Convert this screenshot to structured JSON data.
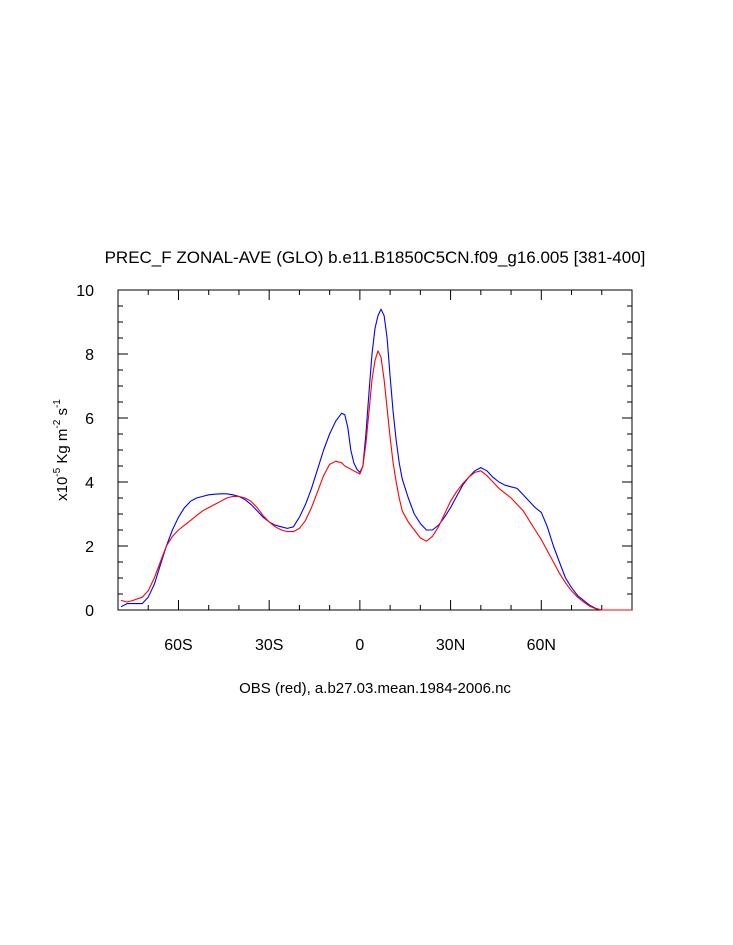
{
  "chart_data": {
    "type": "line",
    "title": "PREC_F ZONAL-AVE (GLO) b.e11.B1850C5CN.f09_g16.005 [381-400]",
    "xlabel": "OBS (red), a.b27.03.mean.1984-2006.nc",
    "ylabel": {
      "prefix": "x10",
      "exp": "-5",
      "unit1": " Kg m",
      "exp2": "-2",
      "unit2": " s",
      "exp3": "-1"
    },
    "xlim": [
      -80,
      90
    ],
    "ylim": [
      0,
      10
    ],
    "x_ticks": [
      {
        "value": -60,
        "label": "60S"
      },
      {
        "value": -30,
        "label": "30S"
      },
      {
        "value": 0,
        "label": "0"
      },
      {
        "value": 30,
        "label": "30N"
      },
      {
        "value": 60,
        "label": "60N"
      }
    ],
    "y_ticks": [
      {
        "value": 0,
        "label": "0"
      },
      {
        "value": 2,
        "label": "2"
      },
      {
        "value": 4,
        "label": "4"
      },
      {
        "value": 6,
        "label": "6"
      },
      {
        "value": 8,
        "label": "8"
      },
      {
        "value": 10,
        "label": "10"
      }
    ],
    "series": [
      {
        "color": "#0000ff",
        "x": [
          -79,
          -77,
          -75,
          -72,
          -70,
          -68,
          -66,
          -64,
          -62,
          -60,
          -58,
          -56,
          -54,
          -52,
          -50,
          -48,
          -46,
          -44,
          -42,
          -40,
          -38,
          -36,
          -34,
          -32,
          -30,
          -28,
          -26,
          -24,
          -22,
          -20,
          -18,
          -16,
          -14,
          -12,
          -10,
          -8,
          -6,
          -5,
          -4,
          -3,
          -2,
          -1,
          0,
          1,
          2,
          3,
          4,
          5,
          6,
          7,
          8,
          9,
          10,
          11,
          12,
          13,
          14,
          16,
          18,
          20,
          22,
          24,
          26,
          28,
          30,
          32,
          34,
          36,
          38,
          40,
          42,
          44,
          46,
          48,
          50,
          52,
          54,
          56,
          58,
          60,
          62,
          64,
          66,
          68,
          70,
          72,
          74,
          76,
          78,
          80,
          82,
          84,
          86,
          88,
          90
        ],
        "y": [
          0.1,
          0.2,
          0.2,
          0.2,
          0.4,
          0.8,
          1.4,
          2.0,
          2.5,
          2.9,
          3.2,
          3.4,
          3.5,
          3.55,
          3.6,
          3.62,
          3.63,
          3.63,
          3.6,
          3.55,
          3.45,
          3.3,
          3.1,
          2.9,
          2.75,
          2.65,
          2.6,
          2.55,
          2.6,
          2.9,
          3.3,
          3.8,
          4.4,
          5.0,
          5.5,
          5.9,
          6.15,
          6.1,
          5.7,
          5.0,
          4.6,
          4.4,
          4.3,
          4.5,
          5.5,
          6.8,
          8.0,
          8.8,
          9.2,
          9.4,
          9.2,
          8.5,
          7.3,
          6.2,
          5.3,
          4.6,
          4.1,
          3.5,
          3.0,
          2.7,
          2.5,
          2.5,
          2.65,
          2.9,
          3.2,
          3.55,
          3.9,
          4.15,
          4.35,
          4.45,
          4.35,
          4.15,
          4.0,
          3.9,
          3.85,
          3.8,
          3.6,
          3.4,
          3.2,
          3.05,
          2.6,
          2.0,
          1.5,
          1.0,
          0.7,
          0.45,
          0.3,
          0.15,
          0.05,
          0.0,
          0.0,
          0.0,
          0.0,
          0.0,
          0.0
        ]
      },
      {
        "name": "OBS",
        "color": "#ff0000",
        "x": [
          -79,
          -77,
          -75,
          -72,
          -70,
          -68,
          -66,
          -64,
          -62,
          -60,
          -58,
          -56,
          -54,
          -52,
          -50,
          -48,
          -46,
          -44,
          -42,
          -40,
          -38,
          -36,
          -34,
          -32,
          -30,
          -28,
          -26,
          -24,
          -22,
          -20,
          -18,
          -16,
          -14,
          -12,
          -10,
          -8,
          -6,
          -5,
          -4,
          -3,
          -2,
          -1,
          0,
          1,
          2,
          3,
          4,
          5,
          6,
          7,
          8,
          9,
          10,
          11,
          12,
          13,
          14,
          16,
          18,
          20,
          22,
          24,
          26,
          28,
          30,
          32,
          34,
          36,
          38,
          40,
          42,
          44,
          46,
          48,
          50,
          52,
          54,
          56,
          58,
          60,
          62,
          64,
          66,
          68,
          70,
          72,
          74,
          76,
          78,
          80,
          82,
          84,
          86,
          88,
          90
        ],
        "y": [
          0.3,
          0.25,
          0.3,
          0.4,
          0.6,
          1.0,
          1.5,
          2.0,
          2.3,
          2.5,
          2.65,
          2.8,
          2.95,
          3.1,
          3.2,
          3.3,
          3.4,
          3.5,
          3.55,
          3.55,
          3.5,
          3.4,
          3.2,
          2.95,
          2.75,
          2.6,
          2.5,
          2.45,
          2.45,
          2.55,
          2.8,
          3.2,
          3.7,
          4.2,
          4.55,
          4.65,
          4.6,
          4.5,
          4.45,
          4.4,
          4.35,
          4.3,
          4.25,
          4.5,
          5.2,
          6.2,
          7.2,
          7.8,
          8.1,
          7.9,
          7.2,
          6.3,
          5.4,
          4.6,
          4.0,
          3.5,
          3.1,
          2.75,
          2.5,
          2.25,
          2.15,
          2.3,
          2.6,
          3.0,
          3.4,
          3.7,
          3.95,
          4.15,
          4.3,
          4.35,
          4.2,
          4.0,
          3.8,
          3.65,
          3.5,
          3.3,
          3.1,
          2.8,
          2.5,
          2.2,
          1.85,
          1.5,
          1.15,
          0.85,
          0.6,
          0.4,
          0.25,
          0.12,
          0.04,
          0.0,
          0.0,
          0.0,
          0.0,
          0.0,
          0.0
        ]
      }
    ]
  }
}
